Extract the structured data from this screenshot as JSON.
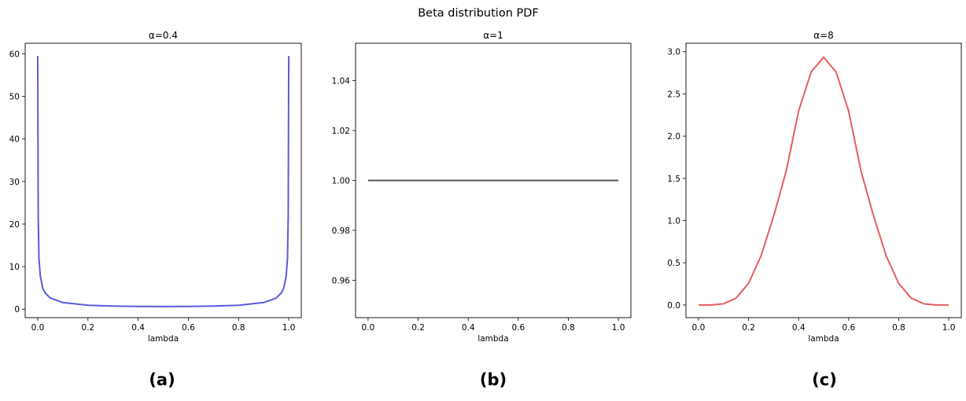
{
  "figure_title": "Beta distribution PDF",
  "captions": [
    "(a)",
    "(b)",
    "(c)"
  ],
  "chart_data": [
    {
      "type": "line",
      "title": "α=0.4",
      "xlabel": "lambda",
      "ylabel": "",
      "xlim": [
        -0.05,
        1.05
      ],
      "ylim": [
        -2.0,
        62.5
      ],
      "xticks": [
        0.0,
        0.2,
        0.4,
        0.6,
        0.8,
        1.0
      ],
      "xtick_labels": [
        "0.0",
        "0.2",
        "0.4",
        "0.6",
        "0.8",
        "1.0"
      ],
      "yticks": [
        0,
        10,
        20,
        30,
        40,
        50,
        60
      ],
      "ytick_labels": [
        "0",
        "10",
        "20",
        "30",
        "40",
        "50",
        "60"
      ],
      "grid": false,
      "series": [
        {
          "color": "#5b5bdb",
          "x": [
            0.0,
            0.002,
            0.005,
            0.01,
            0.02,
            0.03,
            0.05,
            0.1,
            0.2,
            0.3,
            0.4,
            0.5,
            0.6,
            0.7,
            0.8,
            0.9,
            0.95,
            0.97,
            0.98,
            0.99,
            0.995,
            0.998,
            1.0
          ],
          "y": [
            59.5,
            22.0,
            11.9,
            7.9,
            4.9,
            3.8,
            2.6,
            1.55,
            0.92,
            0.72,
            0.64,
            0.62,
            0.64,
            0.72,
            0.92,
            1.55,
            2.6,
            3.8,
            4.9,
            7.9,
            11.9,
            22.0,
            59.5
          ]
        }
      ]
    },
    {
      "type": "line",
      "title": "α=1",
      "xlabel": "lambda",
      "ylabel": "",
      "xlim": [
        -0.05,
        1.05
      ],
      "ylim": [
        0.945,
        1.055
      ],
      "xticks": [
        0.0,
        0.2,
        0.4,
        0.6,
        0.8,
        1.0
      ],
      "xtick_labels": [
        "0.0",
        "0.2",
        "0.4",
        "0.6",
        "0.8",
        "1.0"
      ],
      "yticks": [
        0.96,
        0.98,
        1.0,
        1.02,
        1.04
      ],
      "ytick_labels": [
        "0.96",
        "0.98",
        "1.00",
        "1.02",
        "1.04"
      ],
      "grid": false,
      "series": [
        {
          "color": "#555555",
          "x": [
            0.0,
            1.0
          ],
          "y": [
            1.0,
            1.0
          ]
        }
      ]
    },
    {
      "type": "line",
      "title": "α=8",
      "xlabel": "lambda",
      "ylabel": "",
      "xlim": [
        -0.05,
        1.05
      ],
      "ylim": [
        -0.15,
        3.1
      ],
      "xticks": [
        0.0,
        0.2,
        0.4,
        0.6,
        0.8,
        1.0
      ],
      "xtick_labels": [
        "0.0",
        "0.2",
        "0.4",
        "0.6",
        "0.8",
        "1.0"
      ],
      "yticks": [
        0.0,
        0.5,
        1.0,
        1.5,
        2.0,
        2.5,
        3.0
      ],
      "ytick_labels": [
        "0.0",
        "0.5",
        "1.0",
        "1.5",
        "2.0",
        "2.5",
        "3.0"
      ],
      "grid": false,
      "series": [
        {
          "color": "#e85c5c",
          "x": [
            0.0,
            0.05,
            0.1,
            0.15,
            0.2,
            0.25,
            0.3,
            0.35,
            0.4,
            0.45,
            0.5,
            0.55,
            0.6,
            0.65,
            0.7,
            0.75,
            0.8,
            0.85,
            0.9,
            0.95,
            1.0
          ],
          "y": [
            0.0,
            0.0,
            0.014,
            0.081,
            0.255,
            0.582,
            1.05,
            1.58,
            2.296,
            2.759,
            2.935,
            2.759,
            2.296,
            1.58,
            1.05,
            0.582,
            0.255,
            0.081,
            0.014,
            0.0,
            0.0
          ]
        }
      ]
    }
  ]
}
